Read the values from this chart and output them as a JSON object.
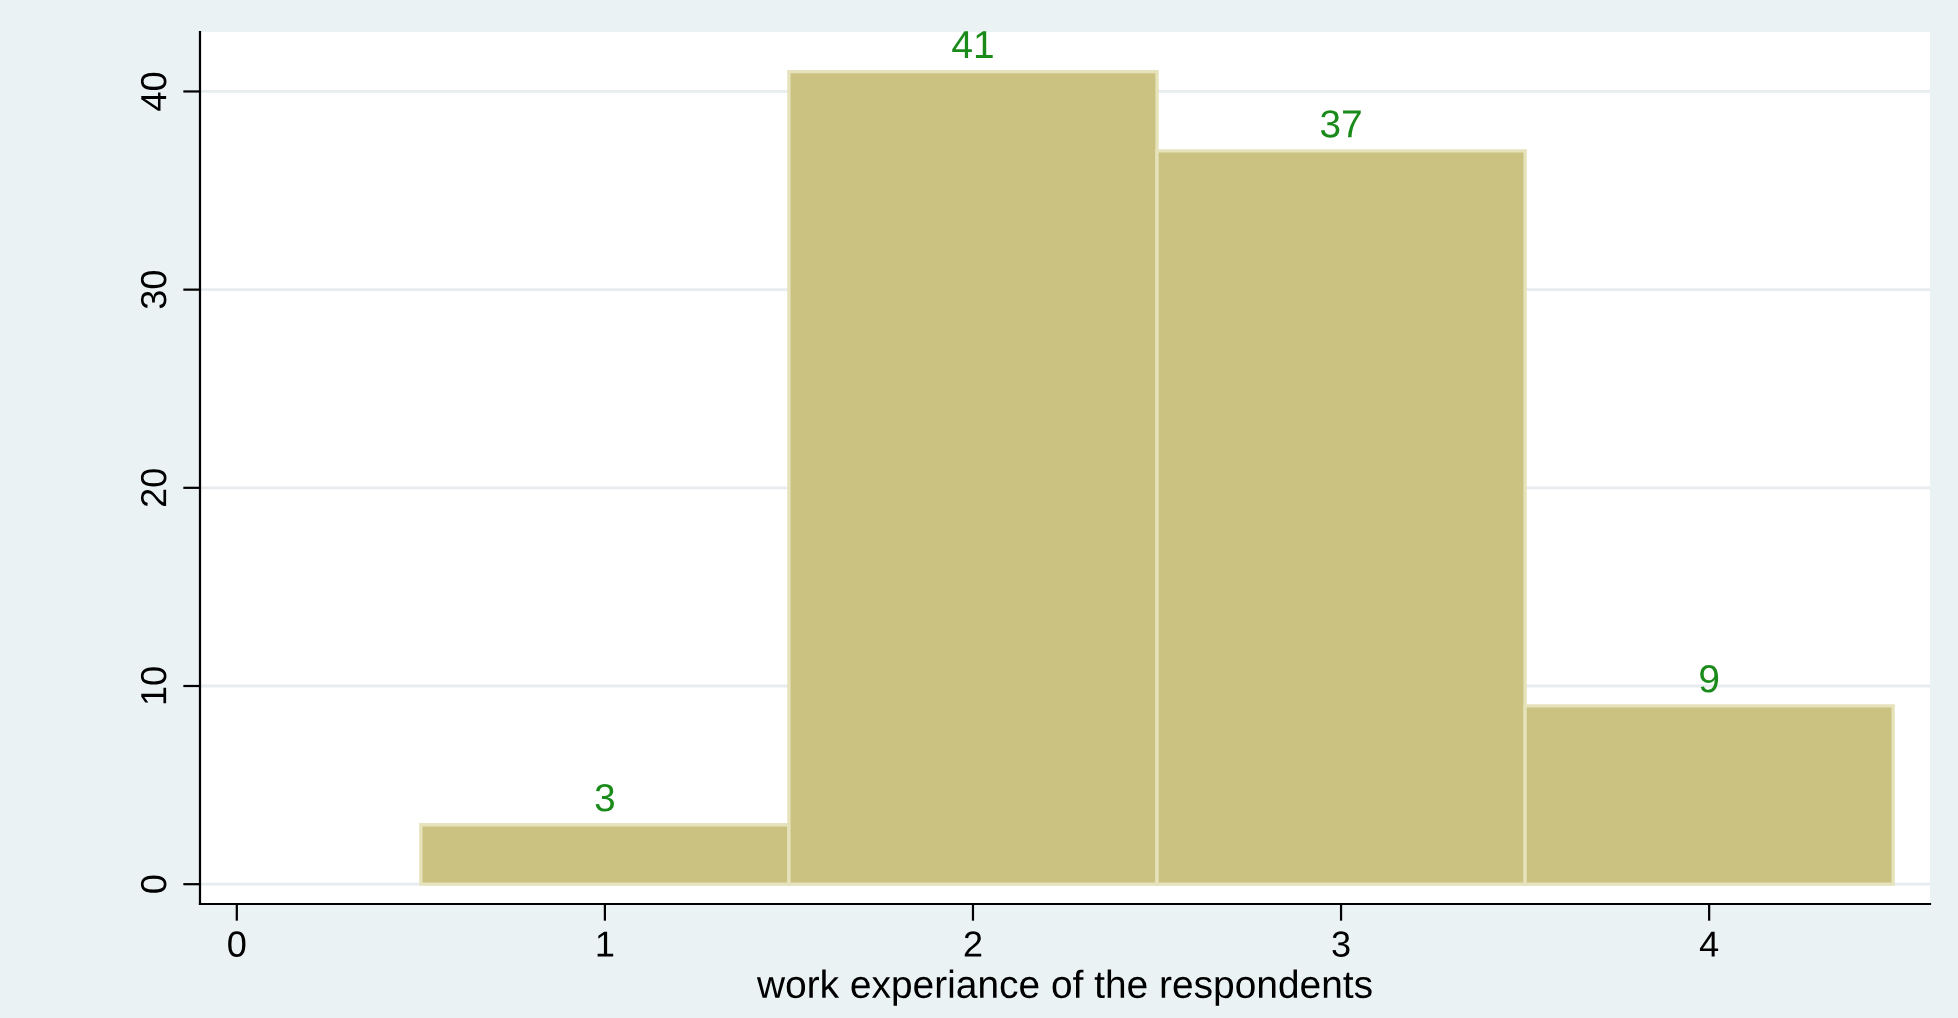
{
  "chart_data": {
    "type": "histogram",
    "xlabel": "work experiance of the respondents",
    "bins": [
      0.5,
      1.5,
      2.5,
      3.5,
      4.5
    ],
    "values": [
      3,
      41,
      37,
      9
    ],
    "color": "#cbc282",
    "data_labels": true,
    "xlim": [
      -0.1,
      4.6
    ],
    "xticks": [
      0,
      1,
      2,
      3,
      4
    ],
    "ylim": [
      -1,
      43
    ],
    "yticks": [
      0,
      10,
      20,
      30,
      40
    ],
    "grid": "y",
    "legend": false
  }
}
